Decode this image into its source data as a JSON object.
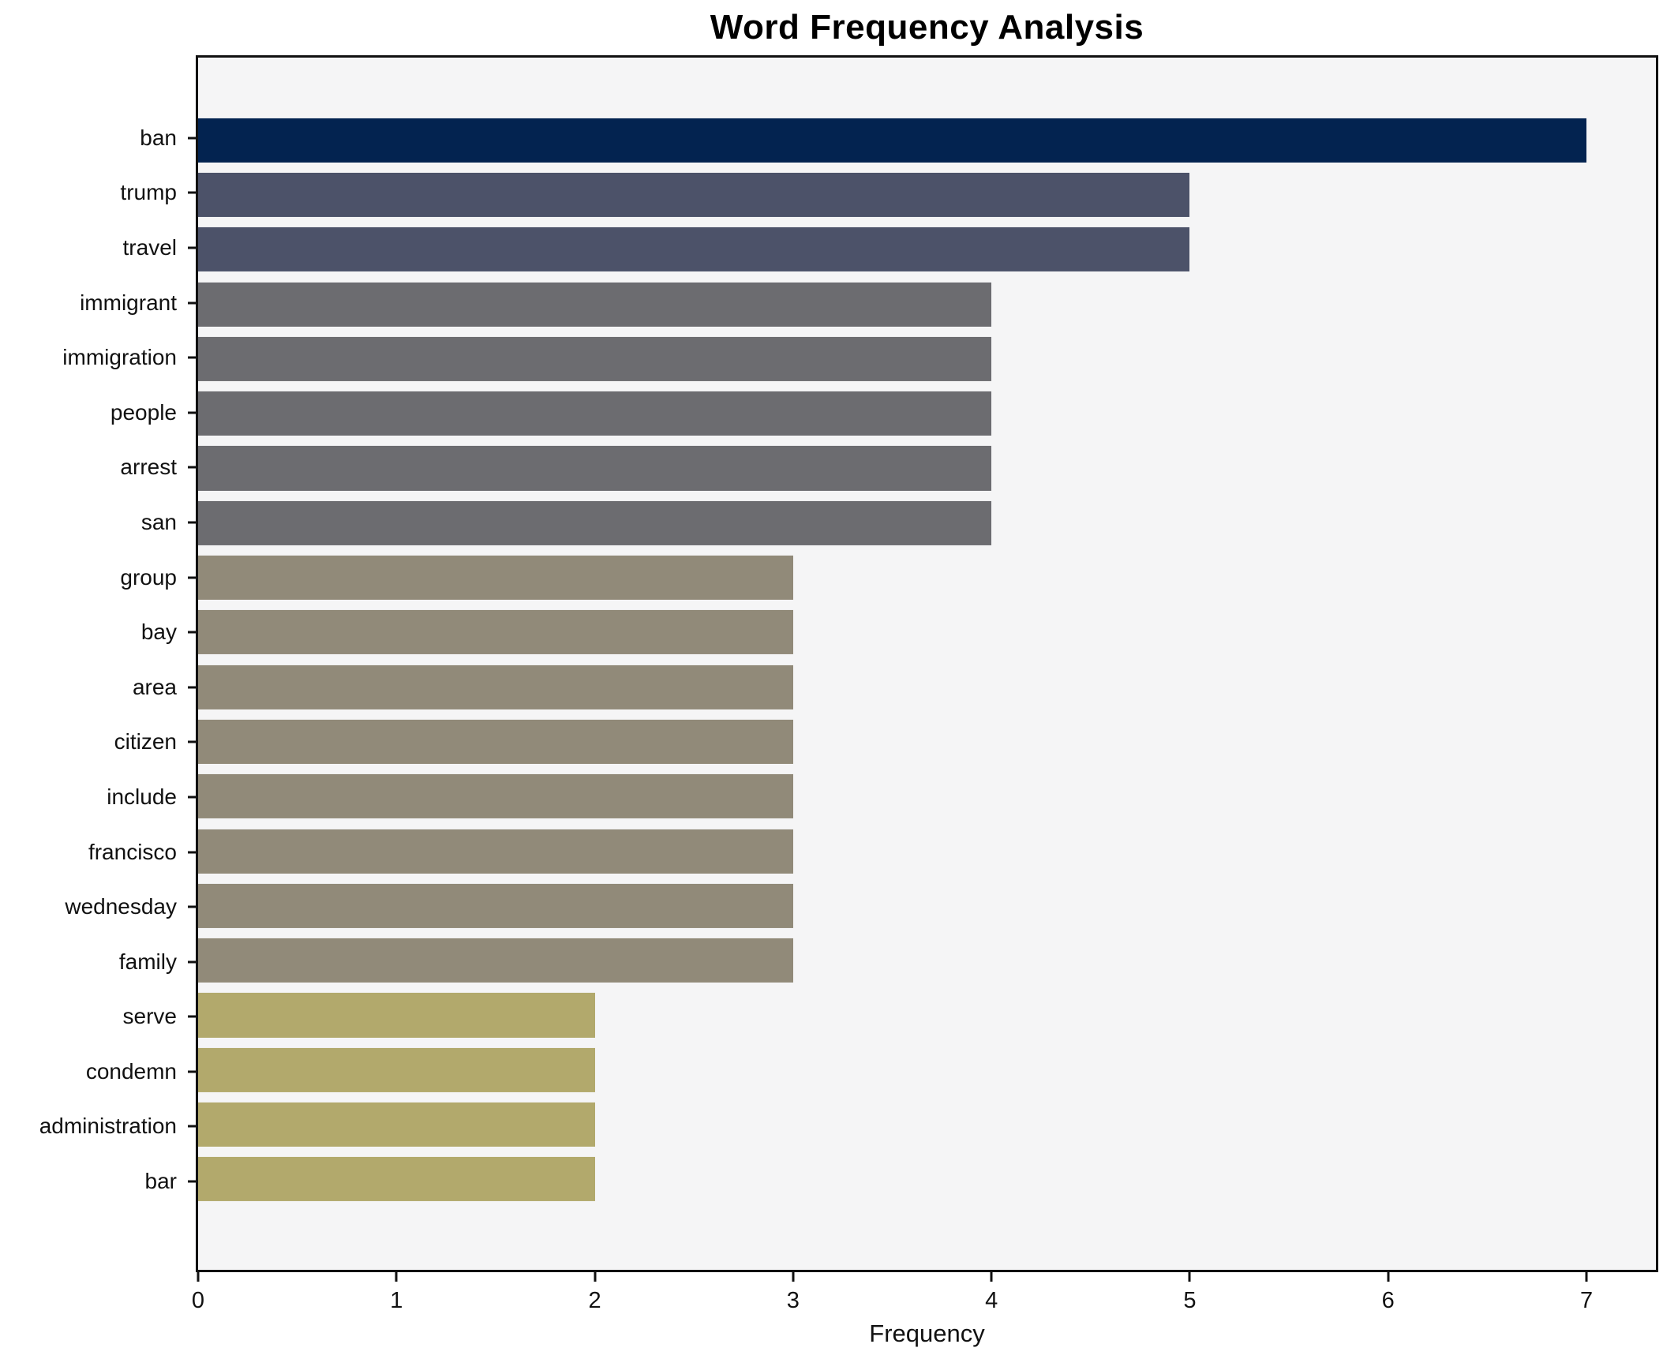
{
  "chart_data": {
    "type": "bar",
    "orientation": "horizontal",
    "title": "Word Frequency Analysis",
    "xlabel": "Frequency",
    "ylabel": "",
    "categories": [
      "ban",
      "trump",
      "travel",
      "immigrant",
      "immigration",
      "people",
      "arrest",
      "san",
      "group",
      "bay",
      "area",
      "citizen",
      "include",
      "francisco",
      "wednesday",
      "family",
      "serve",
      "condemn",
      "administration",
      "bar"
    ],
    "values": [
      7,
      5,
      5,
      4,
      4,
      4,
      4,
      4,
      3,
      3,
      3,
      3,
      3,
      3,
      3,
      3,
      2,
      2,
      2,
      2
    ],
    "bar_colors": [
      "#032350",
      "#4c5269",
      "#4c5269",
      "#6c6c70",
      "#6c6c70",
      "#6c6c70",
      "#6c6c70",
      "#6c6c70",
      "#918a79",
      "#918a79",
      "#918a79",
      "#918a79",
      "#918a79",
      "#918a79",
      "#918a79",
      "#918a79",
      "#b2a96c",
      "#b2a96c",
      "#b2a96c",
      "#b2a96c"
    ],
    "x_ticks": [
      "0",
      "1",
      "2",
      "3",
      "4",
      "5",
      "6",
      "7"
    ],
    "xlim": [
      0,
      7.35
    ],
    "grid": false,
    "legend": "none",
    "colors": {
      "figure_background": "#ffffff",
      "plot_background": "#f5f5f6",
      "axis": "#111111"
    }
  }
}
